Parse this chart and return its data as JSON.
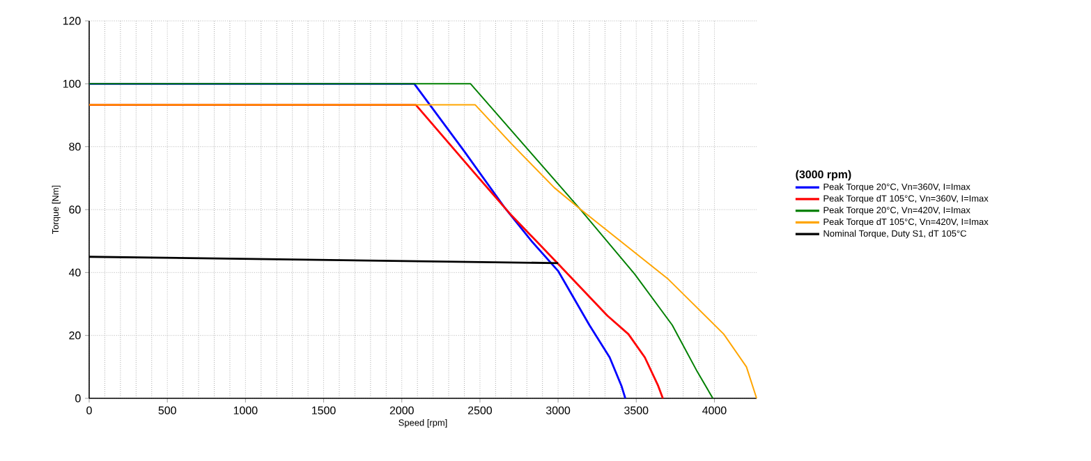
{
  "chart_data": {
    "type": "line",
    "xlabel": "Speed [rpm]",
    "ylabel": "Torque [Nm]",
    "legend_title": "(3000 rpm)",
    "legend": "right",
    "grid": true,
    "line_style": "solid",
    "marker": "none",
    "xlim": [
      0,
      4270
    ],
    "xticks": [
      0,
      500,
      1000,
      1500,
      2000,
      2500,
      3000,
      3500,
      4000
    ],
    "ylim": [
      0,
      120
    ],
    "yticks": [
      0,
      20,
      40,
      60,
      80,
      100,
      120
    ],
    "series": [
      {
        "name": "Peak Torque 20°C, Vn=360V, I=Imax",
        "color": "#0000ff",
        "x": [
          0,
          2080,
          2400,
          2660,
          2830,
          3000,
          3200,
          3330,
          3405,
          3430
        ],
        "values": [
          100,
          100,
          78.5,
          60.5,
          50,
          40.5,
          23.3,
          13,
          4,
          0
        ]
      },
      {
        "name": "Peak Torque dT 105°C, Vn=360V, I=Imax",
        "color": "#ff0000",
        "x": [
          0,
          2090,
          2485,
          2690,
          2990,
          3315,
          3450,
          3555,
          3640,
          3670
        ],
        "values": [
          93.3,
          93.3,
          70.5,
          58.8,
          43.3,
          26.3,
          20.4,
          13,
          4,
          0
        ]
      },
      {
        "name": "Peak Torque 20°C, Vn=420V, I=Imax",
        "color": "#008000",
        "x": [
          0,
          2440,
          3140,
          3490,
          3730,
          3890,
          3990
        ],
        "values": [
          100,
          100,
          60.2,
          39.5,
          23.3,
          8.5,
          0
        ]
      },
      {
        "name": "Peak Torque dT 105°C, Vn=420V, I=Imax",
        "color": "#ffa500",
        "x": [
          0,
          2470,
          2700,
          2975,
          3140,
          3700,
          4060,
          4205,
          4270
        ],
        "values": [
          93.3,
          93.3,
          81,
          67,
          60.2,
          38.1,
          20.4,
          10,
          0
        ]
      },
      {
        "name": "Nominal Torque, Duty S1, dT 105°C",
        "color": "#000000",
        "x": [
          0,
          3000
        ],
        "values": [
          45,
          43
        ]
      }
    ]
  }
}
